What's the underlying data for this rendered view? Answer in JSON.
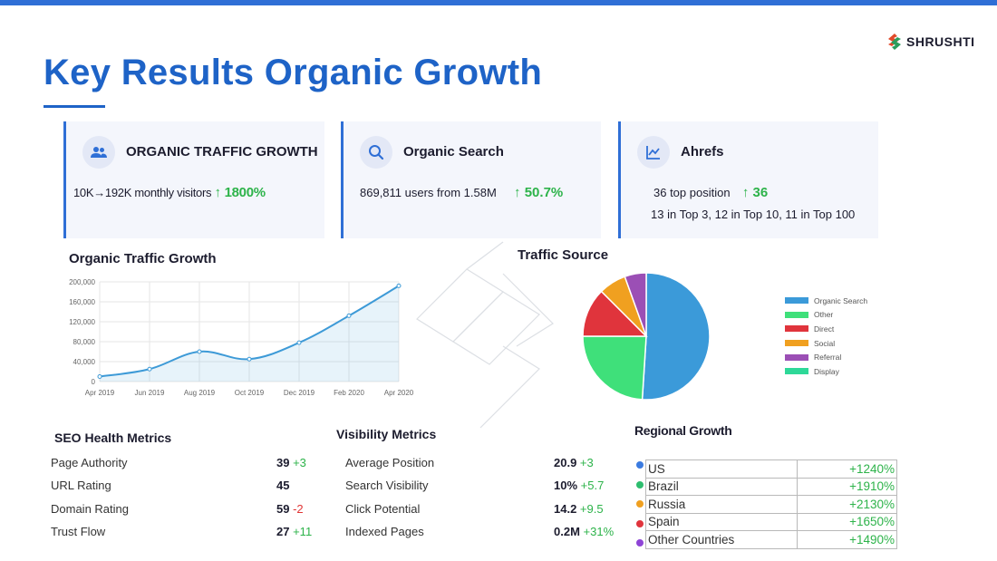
{
  "brand": {
    "name": "SHRUSHTI"
  },
  "page": {
    "title": "Key Results Organic Growth"
  },
  "cards": [
    {
      "title": "ORGANIC TRAFFIC GROWTH",
      "icon": "users-icon",
      "line1": "10K→192K monthly visitors",
      "growth": "↑ 1800%"
    },
    {
      "title": "Organic Search",
      "icon": "search-icon",
      "line1": "869,811 users from 1.58M",
      "growth": "↑ 50.7%"
    },
    {
      "title": "Ahrefs",
      "icon": "trend-chart-icon",
      "line1": "36  top position",
      "growth": "↑ 36",
      "line2": "13 in Top 3, 12 in Top 10, 11 in Top 100"
    }
  ],
  "traffic_chart": {
    "title": "Organic Traffic Growth",
    "color": "#3d9ad7"
  },
  "traffic_source": {
    "title": "Traffic Source"
  },
  "chart_data": [
    {
      "type": "area",
      "title": "Organic Traffic Growth",
      "x": [
        "Apr 2019",
        "Jun 2019",
        "Aug 2019",
        "Oct 2019",
        "Dec 2019",
        "Feb 2020",
        "Apr 2020"
      ],
      "series": [
        {
          "values": [
            10000,
            25000,
            60000,
            45000,
            78000,
            132000,
            192000
          ]
        }
      ],
      "yticks": [
        "0",
        "40,000",
        "80,000",
        "120,000",
        "160,000",
        "200,000"
      ],
      "ylim": [
        0,
        200000
      ],
      "grid": true
    },
    {
      "type": "pie",
      "title": "Traffic Source",
      "labels": [
        "Organic Search",
        "Other",
        "Direct",
        "Social",
        "Referral",
        "Display"
      ],
      "values": [
        51,
        24,
        12.5,
        7,
        5.5,
        0
      ],
      "colors": [
        "#3b9ad9",
        "#3fe07a",
        "#e0343c",
        "#f0a020",
        "#9b4fb5",
        "#2ed898"
      ],
      "legend": "right"
    }
  ],
  "seo_health": {
    "title": "SEO Health Metrics",
    "rows": [
      {
        "label": "Page Authority",
        "value": "39",
        "delta": "+3",
        "sign": "pos"
      },
      {
        "label": "URL Rating",
        "value": "45",
        "delta": "",
        "sign": "pos"
      },
      {
        "label": "Domain Rating",
        "value": "59",
        "delta": "-2",
        "sign": "neg"
      },
      {
        "label": "Trust Flow",
        "value": "27",
        "delta": "+11",
        "sign": "pos"
      }
    ]
  },
  "visibility": {
    "title": "Visibility Metrics",
    "rows": [
      {
        "label": "Average Position",
        "value": "20.9",
        "delta": "+3",
        "sign": "pos"
      },
      {
        "label": "Search Visibility",
        "value": "10%",
        "delta": "+5.7",
        "sign": "pos"
      },
      {
        "label": "Click Potential",
        "value": "14.2",
        "delta": "+9.5",
        "sign": "pos"
      },
      {
        "label": "Indexed Pages",
        "value": "0.2M",
        "delta": "+31%",
        "sign": "pos"
      }
    ]
  },
  "regional": {
    "title": "Regional Growth",
    "rows": [
      {
        "region": "US",
        "growth": "+1240%",
        "color": "#3b7be0"
      },
      {
        "region": "Brazil",
        "growth": "+1910%",
        "color": "#2dbd6e"
      },
      {
        "region": "Russia",
        "growth": "+2130%",
        "color": "#f0a020"
      },
      {
        "region": "Spain",
        "growth": "+1650%",
        "color": "#e0343c"
      },
      {
        "region": "Other Countries",
        "growth": "+1490%",
        "color": "#8e44d6"
      }
    ]
  }
}
